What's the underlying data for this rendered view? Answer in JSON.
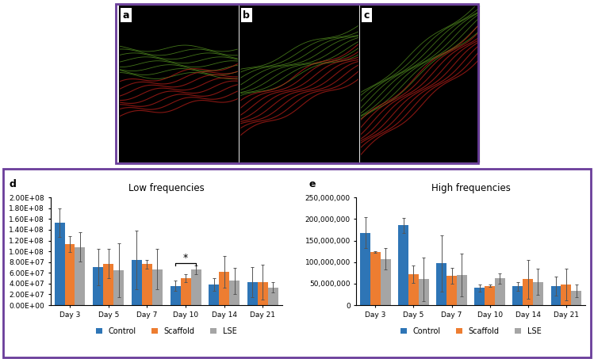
{
  "image_panels": [
    "a",
    "b",
    "c"
  ],
  "chart_panels": [
    "d",
    "e"
  ],
  "chart_data": [
    {
      "type": "bar",
      "title": "Low frequencies",
      "categories": [
        "Day 3",
        "Day 5",
        "Day 7",
        "Day 10",
        "Day 14",
        "Day 21"
      ],
      "series": [
        {
          "name": "Control",
          "color": "#2e75b6",
          "values": [
            153000000,
            71000000,
            84000000,
            36000000,
            38000000,
            43000000
          ],
          "errors": [
            27000000,
            34000000,
            55000000,
            10000000,
            12000000,
            28000000
          ]
        },
        {
          "name": "Scaffold",
          "color": "#ed7d31",
          "values": [
            113000000,
            77000000,
            76000000,
            50000000,
            62000000,
            43000000
          ],
          "errors": [
            15000000,
            27000000,
            8000000,
            7000000,
            29000000,
            32000000
          ]
        },
        {
          "name": "LSE",
          "color": "#a5a5a5",
          "values": [
            108000000,
            65000000,
            67000000,
            66000000,
            45000000,
            33000000
          ],
          "errors": [
            27000000,
            50000000,
            38000000,
            8000000,
            24000000,
            10000000
          ]
        }
      ],
      "ylim": [
        0,
        200000000
      ],
      "yticks": [
        {
          "value": 0,
          "label": "0.00E+00"
        },
        {
          "value": 20000000,
          "label": "2.00E+07"
        },
        {
          "value": 40000000,
          "label": "4.00E+07"
        },
        {
          "value": 60000000,
          "label": "6.00E+07"
        },
        {
          "value": 80000000,
          "label": "8.00E+07"
        },
        {
          "value": 100000000,
          "label": "1.00E+08"
        },
        {
          "value": 120000000,
          "label": "1.20E+08"
        },
        {
          "value": 140000000,
          "label": "1.40E+08"
        },
        {
          "value": 160000000,
          "label": "1.60E+08"
        },
        {
          "value": 180000000,
          "label": "1.80E+08"
        },
        {
          "value": 200000000,
          "label": "2.00E+08"
        }
      ],
      "annotations": [
        {
          "text": "*",
          "category": "Day 10",
          "from": "Control",
          "to": "LSE",
          "y": 78000000
        }
      ],
      "legend": "bottom",
      "grid": false
    },
    {
      "type": "bar",
      "title": "High frequencies",
      "categories": [
        "Day 3",
        "Day 5",
        "Day 7",
        "Day 10",
        "Day 14",
        "Day 21"
      ],
      "series": [
        {
          "name": "Control",
          "color": "#2e75b6",
          "values": [
            168000000,
            185000000,
            97000000,
            40000000,
            44000000,
            45000000
          ],
          "errors": [
            36000000,
            17000000,
            65000000,
            8000000,
            10000000,
            22000000
          ]
        },
        {
          "name": "Scaffold",
          "color": "#ed7d31",
          "values": [
            124000000,
            72000000,
            68000000,
            45000000,
            60000000,
            48000000
          ],
          "errors": [
            2000000,
            20000000,
            18000000,
            3000000,
            45000000,
            37000000
          ]
        },
        {
          "name": "LSE",
          "color": "#a5a5a5",
          "values": [
            107000000,
            60000000,
            70000000,
            62000000,
            54000000,
            33000000
          ],
          "errors": [
            25000000,
            50000000,
            50000000,
            12000000,
            30000000,
            15000000
          ]
        }
      ],
      "ylim": [
        0,
        250000000
      ],
      "yticks": [
        {
          "value": 0,
          "label": "0"
        },
        {
          "value": 50000000,
          "label": "50,000,000"
        },
        {
          "value": 100000000,
          "label": "100,000,000"
        },
        {
          "value": 150000000,
          "label": "150,000,000"
        },
        {
          "value": 200000000,
          "label": "200,000,000"
        },
        {
          "value": 250000000,
          "label": "250,000,000"
        }
      ],
      "legend": "bottom",
      "grid": false
    }
  ]
}
